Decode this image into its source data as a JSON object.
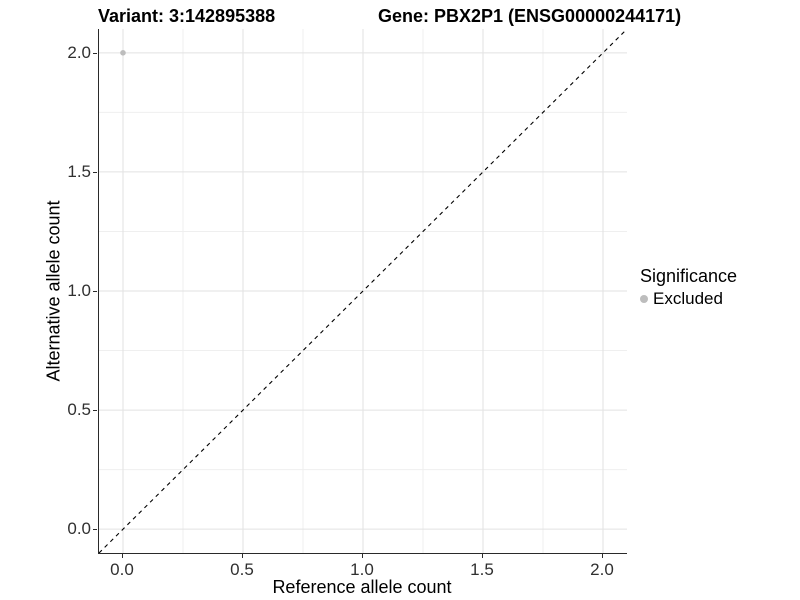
{
  "chart_data": {
    "type": "scatter",
    "variant_title": "Variant: 3:142895388",
    "gene_title": "Gene: PBX2P1 (ENSG00000244171)",
    "xlabel": "Reference allele count",
    "ylabel": "Alternative allele count",
    "xlim": [
      -0.1,
      2.1
    ],
    "ylim": [
      -0.1,
      2.1
    ],
    "x_ticks": [
      {
        "v": 0.0,
        "label": "0.0"
      },
      {
        "v": 0.5,
        "label": "0.5"
      },
      {
        "v": 1.0,
        "label": "1.0"
      },
      {
        "v": 1.5,
        "label": "1.5"
      },
      {
        "v": 2.0,
        "label": "2.0"
      }
    ],
    "y_ticks": [
      {
        "v": 0.0,
        "label": "0.0"
      },
      {
        "v": 0.5,
        "label": "0.5"
      },
      {
        "v": 1.0,
        "label": "1.0"
      },
      {
        "v": 1.5,
        "label": "1.5"
      },
      {
        "v": 2.0,
        "label": "2.0"
      }
    ],
    "grid": "major+minor",
    "identity_line": {
      "type": "abline",
      "slope": 1,
      "intercept": 0,
      "style": "dashed",
      "color": "#000000"
    },
    "points": [
      {
        "x": 0.0,
        "y": 2.0,
        "series": "Excluded",
        "color": "#bdbdbd",
        "radius": 2.8
      }
    ],
    "legend": {
      "title": "Significance",
      "position": "right",
      "entries": [
        {
          "label": "Excluded",
          "color": "#bdbdbd",
          "marker": "circle"
        }
      ]
    },
    "colors": {
      "grid_major": "#e2e2e2",
      "grid_minor": "#efefef",
      "axis_line": "#2a2a2a",
      "tick_text": "#303030",
      "title_text": "#000000"
    }
  }
}
